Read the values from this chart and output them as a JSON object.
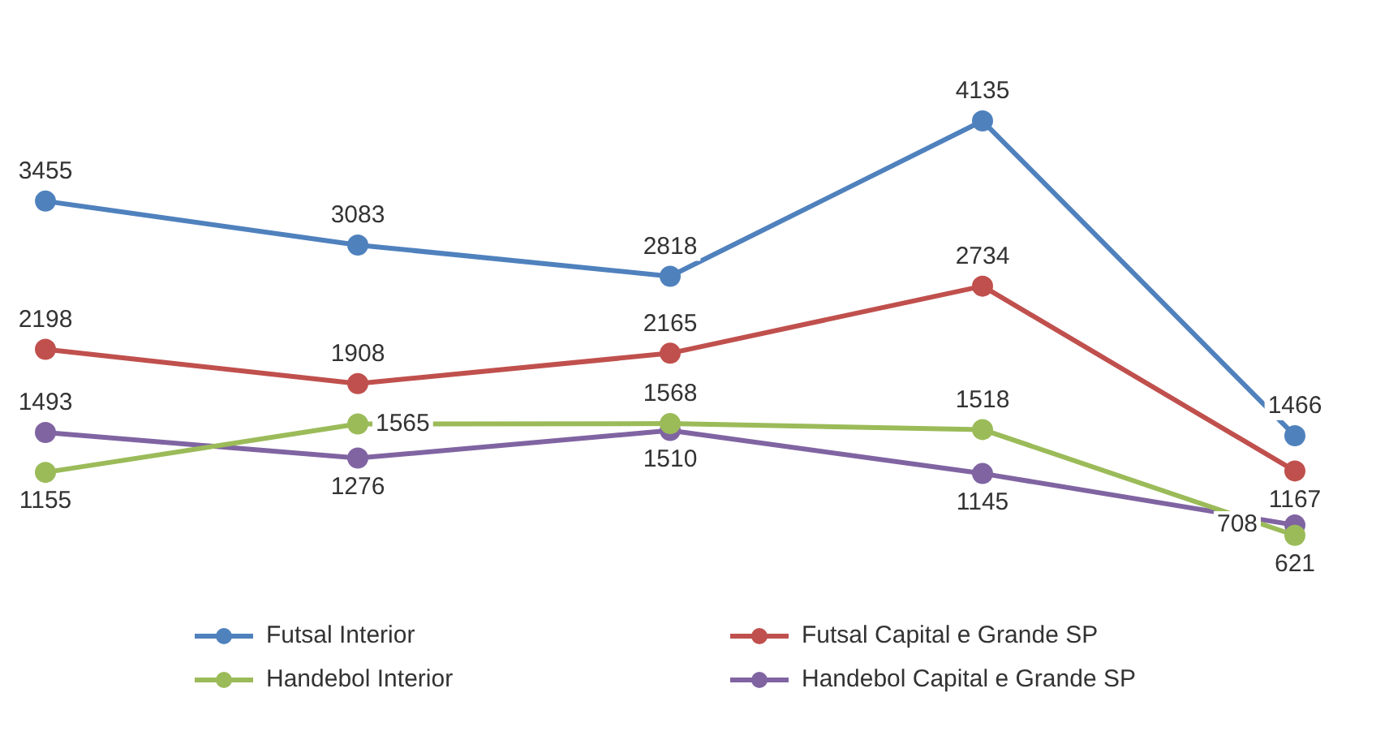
{
  "chart_data": {
    "type": "line",
    "categories": [
      null,
      null,
      null,
      null,
      null
    ],
    "series": [
      {
        "name": "Futsal Interior",
        "color": "#4f81bd",
        "values": [
          3455,
          3083,
          2818,
          4135,
          1466
        ]
      },
      {
        "name": "Futsal Capital e Grande SP",
        "color": "#c0504d",
        "values": [
          2198,
          1908,
          2165,
          2734,
          1167
        ]
      },
      {
        "name": "Handebol Interior",
        "color": "#9bbb59",
        "values": [
          1155,
          1565,
          1568,
          1518,
          621
        ]
      },
      {
        "name": "Handebol Capital e Grande SP",
        "color": "#8064a2",
        "values": [
          1493,
          1276,
          1510,
          1145,
          708
        ]
      }
    ],
    "data_labels": true,
    "marker": "circle",
    "grid": false,
    "legend": "bottom",
    "tick_labels": false
  }
}
